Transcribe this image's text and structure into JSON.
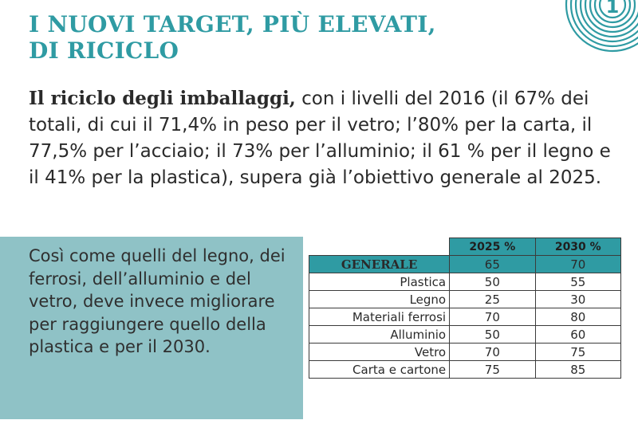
{
  "title": {
    "line1": "I NUOVI TARGET, PIÙ ELEVATI,",
    "line2": "DI RICICLO"
  },
  "badge": {
    "number": "1",
    "icon": "concentric-circles-icon",
    "color": "#2f9ba3"
  },
  "intro": {
    "bold": "Il riciclo degli imballaggi,",
    "text": " con i livelli del 2016 (il 67% dei totali, di cui  il 71,4% in peso per il vetro; l’80% per la carta, il 77,5% per l’acciaio; il 73% per l’alluminio; il 61 % per il legno e il 41% per la plastica), supera già l’obiettivo generale al 2025."
  },
  "side": {
    "text": "Così come quelli del legno, dei ferrosi, dell’alluminio e del vetro, deve invece migliorare per raggiungere quello della plastica e per il 2030.",
    "background": "#8fc2c6"
  },
  "table": {
    "headers": [
      "",
      "2025 %",
      "2030 %"
    ],
    "rows": [
      {
        "label": "GENERALE",
        "v2025": "65",
        "v2030": "70"
      },
      {
        "label": "Plastica",
        "v2025": "50",
        "v2030": "55"
      },
      {
        "label": "Legno",
        "v2025": "25",
        "v2030": "30"
      },
      {
        "label": "Materiali ferrosi",
        "v2025": "70",
        "v2030": "80"
      },
      {
        "label": "Alluminio",
        "v2025": "50",
        "v2030": "60"
      },
      {
        "label": "Vetro",
        "v2025": "70",
        "v2030": "75"
      },
      {
        "label": "Carta e cartone",
        "v2025": "75",
        "v2030": "85"
      }
    ]
  },
  "colors": {
    "accent": "#2f9ba3",
    "text": "#2a2a2a"
  }
}
